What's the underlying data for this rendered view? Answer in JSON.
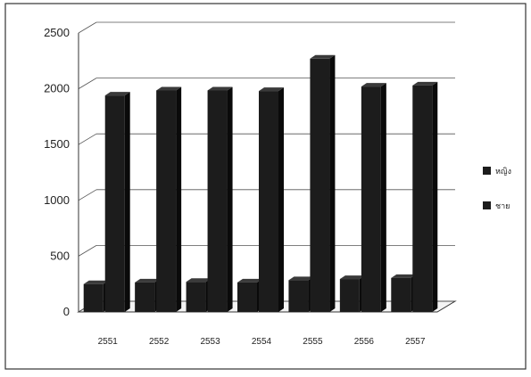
{
  "chart_data": {
    "type": "bar",
    "title": "",
    "xlabel": "",
    "ylabel": "",
    "categories": [
      "2551",
      "2552",
      "2553",
      "2554",
      "2555",
      "2556",
      "2557"
    ],
    "series": [
      {
        "name": "หญิง",
        "values": [
          250,
          265,
          270,
          265,
          285,
          295,
          305
        ]
      },
      {
        "name": "ชาย",
        "values": [
          1940,
          1985,
          1985,
          1980,
          2270,
          2020,
          2030
        ]
      }
    ],
    "ylim": [
      0,
      2500
    ],
    "yticks": [
      "0",
      "500",
      "1000",
      "1500",
      "2000",
      "2500"
    ],
    "grid": true,
    "legend": "right",
    "three_d": true,
    "colors": {
      "bar": "#1c1c1c",
      "bar_side": "#0a0a0a",
      "bar_top": "#3a3a3a",
      "grid": "#555555",
      "frame": "#333333"
    }
  }
}
